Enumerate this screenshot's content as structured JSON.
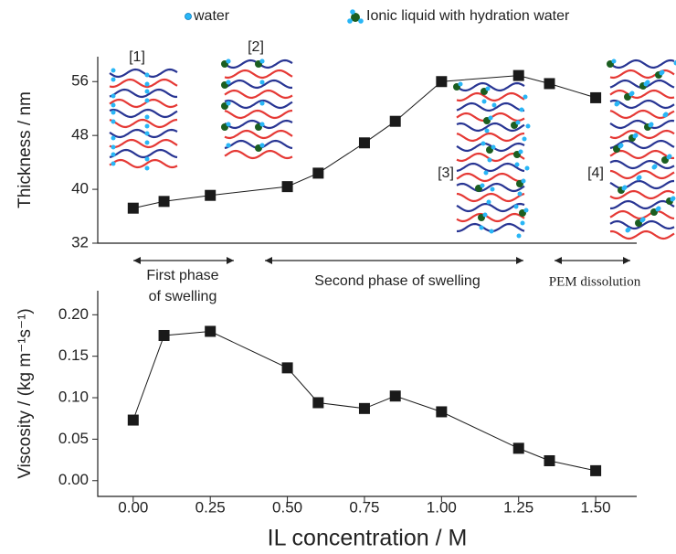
{
  "legend_labels": [
    "water",
    "Ionic liquid with hydration water"
  ],
  "chart_data": [
    {
      "type": "line",
      "ylabel": "Thickness / nm",
      "x": [
        0,
        0.1,
        0.25,
        0.5,
        0.6,
        0.75,
        0.85,
        1.0,
        1.25,
        1.35,
        1.5
      ],
      "series": [
        {
          "color": "#1a1a1a",
          "values": [
            37.2,
            38.2,
            39.1,
            40.4,
            42.4,
            46.9,
            50.1,
            56.0,
            56.9,
            55.7,
            53.6
          ]
        }
      ],
      "xlim": [
        -0.115,
        1.633
      ],
      "ylim": [
        32,
        59.7
      ],
      "yticks": [
        32,
        40,
        48,
        56
      ],
      "structure_labels": [
        "[1]",
        "[2]",
        "[3]",
        "[4]"
      ],
      "phases": [
        [
          "First phase",
          "of swelling"
        ],
        [
          "Second phase of swelling"
        ],
        [
          "PEM dissolution"
        ]
      ]
    },
    {
      "type": "line",
      "xlabel": "IL concentration / M",
      "ylabel": "Viscosity / (kg m⁻¹s⁻¹)",
      "x": [
        0,
        0.1,
        0.25,
        0.5,
        0.6,
        0.75,
        0.85,
        1.0,
        1.25,
        1.35,
        1.5
      ],
      "series": [
        {
          "color": "#1a1a1a",
          "values": [
            0.073,
            0.175,
            0.18,
            0.136,
            0.094,
            0.087,
            0.102,
            0.083,
            0.039,
            0.024,
            0.012
          ]
        }
      ],
      "xlim": [
        -0.115,
        1.633
      ],
      "ylim": [
        -0.019,
        0.229
      ],
      "xticks": [
        {
          "value": 0,
          "label": "0.00"
        },
        {
          "value": 0.25,
          "label": "0.25"
        },
        {
          "value": 0.5,
          "label": "0.50"
        },
        {
          "value": 0.75,
          "label": "0.75"
        },
        {
          "value": 1.0,
          "label": "1.00"
        },
        {
          "value": 1.25,
          "label": "1.25"
        },
        {
          "value": 1.5,
          "label": "1.50"
        }
      ],
      "yticks": [
        {
          "value": 0,
          "label": "0.00"
        },
        {
          "value": 0.05,
          "label": "0.05"
        },
        {
          "value": 0.1,
          "label": "0.10"
        },
        {
          "value": 0.15,
          "label": "0.15"
        },
        {
          "value": 0.2,
          "label": "0.20"
        }
      ]
    }
  ]
}
